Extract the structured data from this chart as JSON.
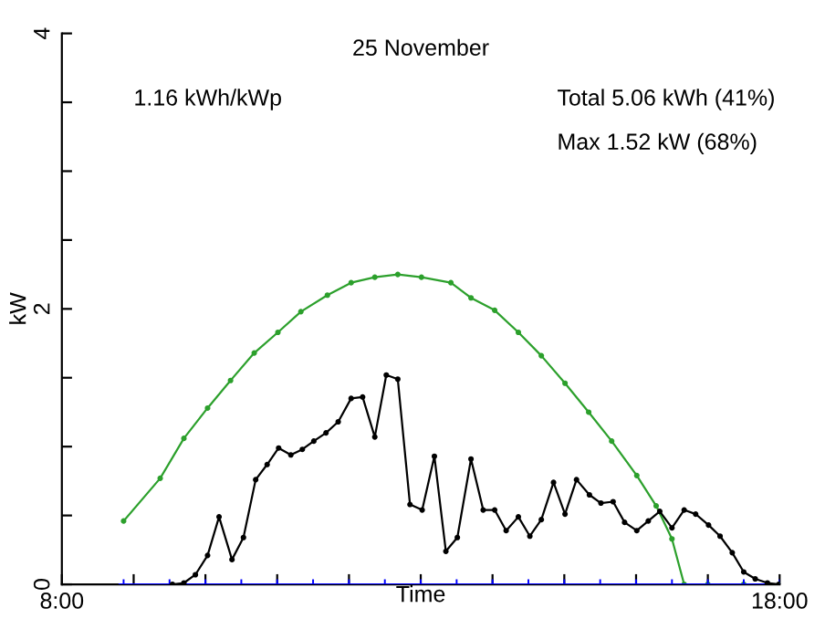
{
  "chart_data": {
    "type": "line",
    "title": "25 November",
    "xlabel": "Time",
    "ylabel": "kW",
    "annotations": [
      "1.16 kWh/kWp",
      "Total 5.06 kWh (41%)",
      "Max 1.52 kW (68%)"
    ],
    "xlim": [
      8,
      18
    ],
    "ylim": [
      0,
      4
    ],
    "xticks": [
      {
        "value": 8,
        "label": "8:00"
      },
      {
        "value": 9,
        "label": null
      },
      {
        "value": 10,
        "label": null
      },
      {
        "value": 11,
        "label": null
      },
      {
        "value": 12,
        "label": null
      },
      {
        "value": 13,
        "label": null
      },
      {
        "value": 14,
        "label": null
      },
      {
        "value": 15,
        "label": null
      },
      {
        "value": 16,
        "label": null
      },
      {
        "value": 17,
        "label": null
      },
      {
        "value": 18,
        "label": "18:00"
      }
    ],
    "yticks": [
      0,
      {
        "value": 0.5,
        "label": null
      },
      {
        "value": 1,
        "label": null
      },
      {
        "value": 1.5,
        "label": null
      },
      2,
      {
        "value": 2.5,
        "label": null
      },
      {
        "value": 3,
        "label": null
      },
      {
        "value": 3.5,
        "label": null
      },
      4
    ],
    "grid": false,
    "legend": false,
    "series": [
      {
        "color": "#2ca02c",
        "marker": "circle",
        "x": [
          8.86,
          9.37,
          9.7,
          10.03,
          10.35,
          10.68,
          11.01,
          11.33,
          11.7,
          12.03,
          12.36,
          12.68,
          13.01,
          13.42,
          13.7,
          14.03,
          14.36,
          14.68,
          15.01,
          15.34,
          15.66,
          16.01,
          16.28,
          16.5,
          16.67,
          17.0,
          17.5,
          18.0
        ],
        "values": [
          0.46,
          0.77,
          1.06,
          1.28,
          1.48,
          1.68,
          1.83,
          1.98,
          2.1,
          2.19,
          2.23,
          2.25,
          2.23,
          2.19,
          2.08,
          1.99,
          1.83,
          1.66,
          1.46,
          1.25,
          1.04,
          0.79,
          0.57,
          0.33,
          0,
          0,
          0,
          0
        ]
      },
      {
        "color": "#0000ff",
        "marker": "cross",
        "x": [
          8.86,
          9.5,
          10,
          10.5,
          11,
          11.5,
          12,
          12.5,
          13,
          13.5,
          14,
          14.5,
          15,
          15.5,
          16,
          16.5,
          17,
          17.5,
          18
        ],
        "values": [
          0,
          0,
          0,
          0,
          0,
          0,
          0,
          0,
          0,
          0,
          0,
          0,
          0,
          0,
          0,
          0,
          0,
          0,
          0
        ]
      },
      {
        "color": "#000000",
        "marker": "circle",
        "x": [
          9.54,
          9.7,
          9.86,
          10.03,
          10.19,
          10.37,
          10.53,
          10.7,
          10.86,
          11.02,
          11.19,
          11.35,
          11.51,
          11.68,
          11.85,
          12.03,
          12.19,
          12.36,
          12.52,
          12.68,
          12.85,
          13.02,
          13.19,
          13.35,
          13.51,
          13.7,
          13.87,
          14.03,
          14.19,
          14.36,
          14.52,
          14.68,
          14.85,
          15.01,
          15.17,
          15.35,
          15.51,
          15.68,
          15.84,
          16.01,
          16.17,
          16.33,
          16.5,
          16.67,
          16.83,
          17.01,
          17.17,
          17.34,
          17.5,
          17.66,
          17.83,
          17.99
        ],
        "values": [
          0,
          0.01,
          0.07,
          0.21,
          0.49,
          0.18,
          0.34,
          0.76,
          0.87,
          0.99,
          0.94,
          0.98,
          1.04,
          1.1,
          1.18,
          1.35,
          1.36,
          1.07,
          1.52,
          1.49,
          0.58,
          0.54,
          0.93,
          0.24,
          0.34,
          0.91,
          0.54,
          0.54,
          0.39,
          0.49,
          0.35,
          0.47,
          0.74,
          0.51,
          0.76,
          0.65,
          0.59,
          0.6,
          0.45,
          0.39,
          0.46,
          0.53,
          0.41,
          0.54,
          0.51,
          0.43,
          0.35,
          0.23,
          0.09,
          0.04,
          0.01,
          0
        ]
      }
    ]
  }
}
